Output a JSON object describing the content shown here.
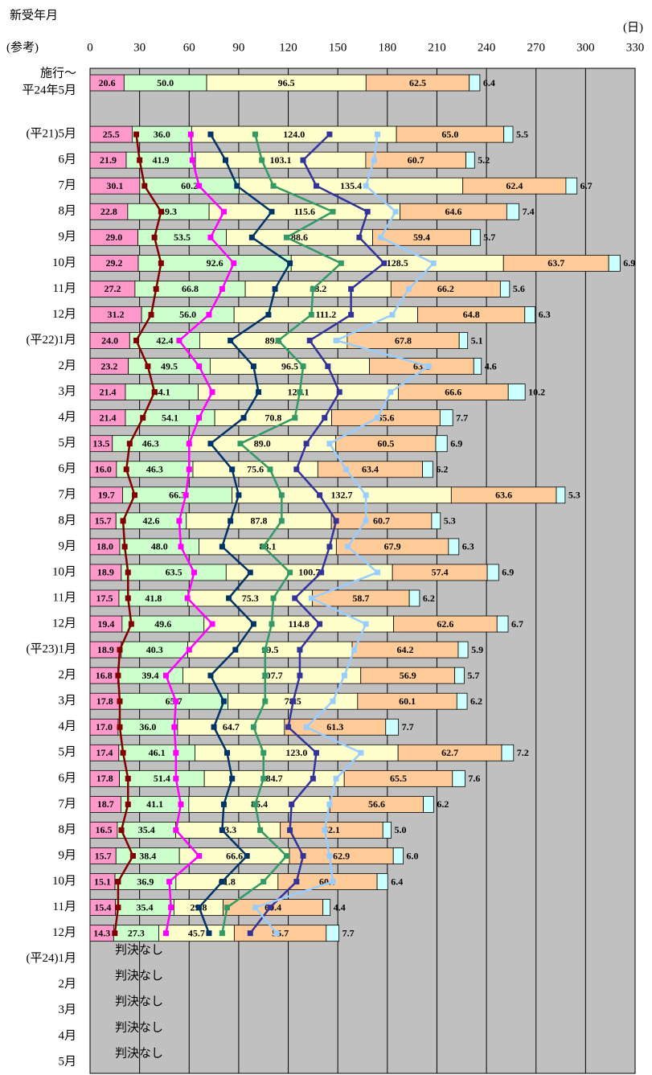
{
  "chart_data": {
    "type": "bar",
    "orientation": "horizontal",
    "stacked": true,
    "title": "新受年月",
    "subtitle": "(参考)",
    "unit_label": "(日)",
    "xlim": [
      0,
      330
    ],
    "xticks": [
      0,
      30,
      60,
      90,
      120,
      150,
      180,
      210,
      240,
      270,
      300,
      330
    ],
    "grid": true,
    "categories": [
      "施行～\n平24年5月",
      null,
      "(平21)5月",
      "6月",
      "7月",
      "8月",
      "9月",
      "10月",
      "11月",
      "12月",
      "(平22)1月",
      "2月",
      "3月",
      "4月",
      "5月",
      "6月",
      "7月",
      "8月",
      "9月",
      "10月",
      "11月",
      "12月",
      "(平23)1月",
      "2月",
      "3月",
      "4月",
      "5月",
      "6月",
      "7月",
      "8月",
      "9月",
      "10月",
      "11月",
      "12月",
      "(平24)1月",
      "2月",
      "3月",
      "4月",
      "5月"
    ],
    "annotations": [
      "判決なし",
      "判決なし",
      "判決なし",
      "判決なし",
      "判決なし"
    ],
    "series": [
      {
        "color": "#ff99cc",
        "values": [
          20.6,
          null,
          25.5,
          21.9,
          30.1,
          22.8,
          29.0,
          29.2,
          27.2,
          31.2,
          24.0,
          23.2,
          21.4,
          21.4,
          13.5,
          16.0,
          19.7,
          15.7,
          18.0,
          18.9,
          17.5,
          19.4,
          18.9,
          16.8,
          17.8,
          17.0,
          17.4,
          17.8,
          18.7,
          16.5,
          15.7,
          15.1,
          15.4,
          14.3,
          null,
          null,
          null,
          null,
          null
        ],
        "value_labels": [
          "20.6",
          null,
          "25.5",
          "21.9",
          "30.1",
          "22.8",
          "29.0",
          "29.2",
          "27.2",
          "31.2",
          "24.0",
          "23.2",
          "21.4",
          "21.4",
          "13.5",
          "16.0",
          "19.7",
          "15.7",
          "18.0",
          "18.9",
          "17.5",
          "19.4",
          "18.9",
          "16.8",
          "17.8",
          "17.0",
          "17.4",
          "17.8",
          "18.7",
          "16.5",
          "15.7",
          "15.1",
          "15.4",
          "14.3",
          null,
          null,
          null,
          null,
          null
        ]
      },
      {
        "color": "#ccffcc",
        "values": [
          50.0,
          null,
          36.0,
          41.9,
          60.2,
          49.3,
          53.5,
          92.6,
          66.8,
          56.0,
          42.4,
          49.5,
          44.1,
          54.1,
          46.3,
          46.3,
          66.3,
          42.6,
          48.0,
          63.5,
          41.8,
          49.6,
          40.3,
          39.4,
          65.7,
          36.0,
          46.1,
          51.4,
          41.1,
          35.4,
          38.4,
          36.9,
          35.4,
          27.3,
          null,
          null,
          null,
          null,
          null
        ],
        "value_labels": [
          "50.0",
          null,
          "36.0",
          "41.9",
          "60.2",
          "49.3",
          "53.5",
          "92.6",
          "66.8",
          "56.0",
          "42.4",
          "49.5",
          "44.1",
          "54.1",
          "46.3",
          "46.3",
          "66.3",
          "42.6",
          "48.0",
          "63.5",
          "41.8",
          "49.6",
          "40.3",
          "39.4",
          "65.7",
          "36.0",
          "46.1",
          "51.4",
          "41.1",
          "35.4",
          "38.4",
          "36.9",
          "35.4",
          "27.3",
          null,
          null,
          null,
          null,
          null
        ]
      },
      {
        "color": "#ffffcc",
        "values": [
          96.5,
          null,
          124.0,
          103.1,
          135.4,
          115.6,
          88.6,
          128.5,
          88.2,
          111.2,
          89.3,
          96.5,
          121.1,
          70.8,
          89.0,
          75.6,
          132.7,
          87.8,
          83.1,
          100.7,
          75.3,
          114.8,
          99.5,
          107.7,
          78.5,
          64.7,
          123.0,
          84.7,
          85.4,
          63.3,
          66.6,
          61.8,
          29.8,
          45.7,
          null,
          null,
          null,
          null,
          null
        ],
        "value_labels": [
          "96.5",
          null,
          "124.0",
          "103.1",
          "135.4",
          "115.6",
          "88.6",
          "128.5",
          "88.2",
          "111.2",
          "89.3",
          "96.5",
          "121.1",
          "70.8",
          "89.0",
          "75.6",
          "132.7",
          "87.8",
          "83.1",
          "100.7",
          "75.3",
          "114.8",
          "99.5",
          "107.7",
          "78.5",
          "64.7",
          "123.0",
          "84.7",
          "85.4",
          "63.3",
          "66.6",
          "61.8",
          "29.8",
          "45.7",
          null,
          null,
          null,
          null,
          null
        ]
      },
      {
        "color": "#ffcc99",
        "values": [
          62.5,
          null,
          65.0,
          60.7,
          62.4,
          64.6,
          59.4,
          63.7,
          66.2,
          64.8,
          67.8,
          63.1,
          66.6,
          65.6,
          60.5,
          63.4,
          63.6,
          60.7,
          67.9,
          57.4,
          58.7,
          62.6,
          64.2,
          56.9,
          60.1,
          61.3,
          62.7,
          65.5,
          56.6,
          62.1,
          62.9,
          60.0,
          60.4,
          55.7,
          null,
          null,
          null,
          null,
          null
        ],
        "value_labels": [
          "62.5",
          null,
          "65.0",
          "60.7",
          "62.4",
          "64.6",
          "59.4",
          "63.7",
          "66.2",
          "64.8",
          "67.8",
          "63.1",
          "66.6",
          "65.6",
          "60.5",
          "63.4",
          "63.6",
          "60.7",
          "67.9",
          "57.4",
          "58.7",
          "62.6",
          "64.2",
          "56.9",
          "60.1",
          "61.3",
          "62.7",
          "65.5",
          "56.6",
          "62.1",
          "62.9",
          "60.0",
          "60.4",
          "55.7",
          null,
          null,
          null,
          null,
          null
        ]
      },
      {
        "color": "#ccffff",
        "values": [
          6.4,
          null,
          5.5,
          5.2,
          6.7,
          7.4,
          5.7,
          6.9,
          5.6,
          6.3,
          5.1,
          4.6,
          10.2,
          7.7,
          6.9,
          6.2,
          5.3,
          5.3,
          6.3,
          6.9,
          6.2,
          6.7,
          5.9,
          5.7,
          6.2,
          7.7,
          7.2,
          7.6,
          6.2,
          5.0,
          6.0,
          6.4,
          4.4,
          7.7,
          null,
          null,
          null,
          null,
          null
        ],
        "value_labels": [
          "6.4",
          null,
          "5.5",
          "5.2",
          "6.7",
          "7.4",
          "5.7",
          "6.9",
          "5.6",
          "6.3",
          "5.1",
          "4.6",
          "10.2",
          "7.7",
          "6.9",
          "6.2",
          "5.3",
          "5.3",
          "6.3",
          "6.9",
          "6.2",
          "6.7",
          "5.9",
          "5.7",
          "6.2",
          "7.7",
          "7.2",
          "7.6",
          "6.2",
          "5.0",
          "6.0",
          "6.4",
          "4.4",
          "7.7",
          null,
          null,
          null,
          null,
          null
        ]
      }
    ],
    "lines": [
      {
        "color": "#800000",
        "values": [
          null,
          null,
          28,
          30,
          33,
          43,
          39,
          43,
          40,
          37,
          28,
          35,
          39,
          32,
          24,
          22,
          27,
          20,
          21,
          23,
          23,
          25,
          18,
          17,
          18,
          18,
          20,
          23,
          23,
          19,
          26,
          17,
          17,
          15,
          null,
          null,
          null,
          null,
          null
        ]
      },
      {
        "color": "#ff00ff",
        "values": [
          null,
          null,
          61,
          62,
          66,
          81,
          73,
          87,
          80,
          72,
          54,
          66,
          74,
          66,
          60,
          60,
          58,
          54,
          55,
          63,
          59,
          74,
          60,
          46,
          52,
          51,
          52,
          52,
          55,
          52,
          66,
          48,
          49,
          46,
          null,
          null,
          null,
          null,
          null
        ]
      },
      {
        "color": "#003366",
        "values": [
          null,
          null,
          73,
          82,
          89,
          110,
          98,
          121,
          112,
          108,
          85,
          99,
          102,
          93,
          73,
          86,
          90,
          85,
          80,
          97,
          84,
          99,
          88,
          73,
          81,
          75,
          83,
          86,
          81,
          80,
          95,
          80,
          66,
          72,
          null,
          null,
          null,
          null,
          null
        ]
      },
      {
        "color": "#339966",
        "values": [
          null,
          null,
          100,
          104,
          111,
          147,
          119,
          152,
          135,
          134,
          114,
          129,
          127,
          124,
          91,
          109,
          116,
          116,
          105,
          121,
          111,
          110,
          106,
          106,
          106,
          99,
          105,
          105,
          100,
          103,
          119,
          105,
          83,
          80,
          null,
          null,
          null,
          null,
          null
        ]
      },
      {
        "color": "#333399",
        "values": [
          null,
          null,
          145,
          129,
          137,
          168,
          163,
          178,
          158,
          158,
          133,
          144,
          151,
          142,
          131,
          125,
          139,
          149,
          145,
          140,
          124,
          139,
          127,
          127,
          123,
          120,
          137,
          135,
          122,
          121,
          129,
          125,
          109,
          97,
          null,
          null,
          null,
          null,
          null
        ]
      },
      {
        "color": "#99ccff",
        "values": [
          null,
          null,
          174,
          172,
          167,
          185,
          176,
          208,
          193,
          183,
          149,
          205,
          182,
          174,
          145,
          155,
          167,
          167,
          156,
          174,
          134,
          167,
          160,
          154,
          147,
          131,
          164,
          149,
          145,
          142,
          145,
          147,
          100,
          113,
          null,
          null,
          null,
          null,
          null
        ]
      }
    ]
  }
}
